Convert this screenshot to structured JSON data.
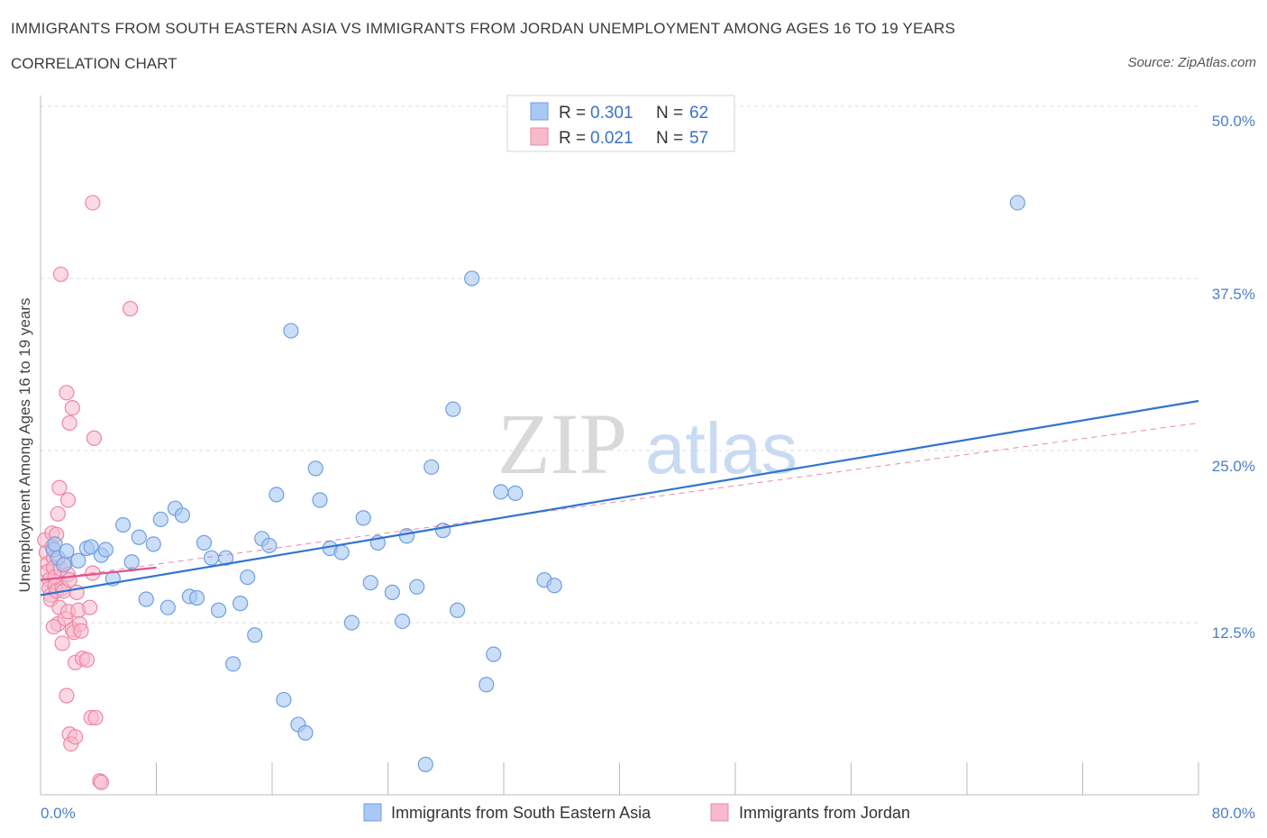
{
  "header": {
    "title": "IMMIGRANTS FROM SOUTH EASTERN ASIA VS IMMIGRANTS FROM JORDAN UNEMPLOYMENT AMONG AGES 16 TO 19 YEARS",
    "subtitle": "CORRELATION CHART",
    "source": "Source: ZipAtlas.com"
  },
  "legend": {
    "r_label": "R =",
    "n_label": "N =",
    "entries": [
      {
        "r": "0.301",
        "n": "62"
      },
      {
        "r": "0.021",
        "n": "57"
      }
    ]
  },
  "watermark": {
    "zip": "ZIP",
    "atlas": "atlas"
  },
  "colors": {
    "blue_fill": "#a9c8f3",
    "blue_stroke": "#6f9fe0",
    "blue_line": "#2f74d0",
    "pink_fill": "#f7b9cc",
    "pink_stroke": "#ee86a6",
    "pink_line": "#e0548a"
  },
  "chart_data": {
    "type": "scatter",
    "title": "IMMIGRANTS FROM SOUTH EASTERN ASIA VS IMMIGRANTS FROM JORDAN UNEMPLOYMENT AMONG AGES 16 TO 19 YEARS",
    "ylabel": "Unemployment Among Ages 16 to 19 years",
    "xlim": [
      0,
      80
    ],
    "ylim": [
      0,
      50
    ],
    "x_tick_labels": [
      "0.0%",
      "80.0%"
    ],
    "y_ticks": [
      12.5,
      25.0,
      37.5,
      50.0
    ],
    "y_tick_labels": [
      "12.5%",
      "25.0%",
      "37.5%",
      "50.0%"
    ],
    "grid": true,
    "series": [
      {
        "name": "Immigrants from South Eastern Asia",
        "r": 0.301,
        "n": 62,
        "trend": {
          "x": [
            0,
            80
          ],
          "y": [
            14.5,
            28.6
          ]
        },
        "points": [
          [
            0.9,
            17.8
          ],
          [
            1.0,
            18.2
          ],
          [
            1.2,
            17.2
          ],
          [
            1.6,
            16.7
          ],
          [
            2.6,
            17.0
          ],
          [
            3.2,
            17.9
          ],
          [
            3.5,
            18.0
          ],
          [
            4.2,
            17.4
          ],
          [
            4.5,
            17.8
          ],
          [
            5.0,
            15.7
          ],
          [
            5.7,
            19.6
          ],
          [
            6.3,
            16.9
          ],
          [
            6.8,
            18.7
          ],
          [
            7.3,
            14.2
          ],
          [
            7.8,
            18.2
          ],
          [
            8.3,
            20.0
          ],
          [
            8.8,
            13.6
          ],
          [
            9.3,
            20.8
          ],
          [
            9.8,
            20.3
          ],
          [
            10.3,
            14.4
          ],
          [
            10.8,
            14.3
          ],
          [
            11.3,
            18.3
          ],
          [
            11.8,
            17.2
          ],
          [
            12.3,
            13.4
          ],
          [
            12.8,
            17.2
          ],
          [
            13.3,
            9.5
          ],
          [
            13.8,
            13.9
          ],
          [
            14.3,
            15.8
          ],
          [
            14.8,
            11.6
          ],
          [
            15.3,
            18.6
          ],
          [
            15.8,
            18.1
          ],
          [
            16.3,
            21.8
          ],
          [
            16.8,
            6.9
          ],
          [
            17.3,
            33.7
          ],
          [
            17.8,
            5.1
          ],
          [
            18.3,
            4.5
          ],
          [
            19.0,
            23.7
          ],
          [
            19.3,
            21.4
          ],
          [
            20.0,
            17.9
          ],
          [
            20.8,
            17.6
          ],
          [
            21.5,
            12.5
          ],
          [
            22.3,
            20.1
          ],
          [
            22.8,
            15.4
          ],
          [
            23.3,
            18.3
          ],
          [
            24.3,
            14.7
          ],
          [
            25.0,
            12.6
          ],
          [
            25.3,
            18.8
          ],
          [
            26.0,
            15.1
          ],
          [
            26.6,
            2.2
          ],
          [
            27.0,
            23.8
          ],
          [
            27.8,
            19.2
          ],
          [
            28.5,
            28.0
          ],
          [
            28.8,
            13.4
          ],
          [
            29.8,
            37.5
          ],
          [
            30.8,
            8.0
          ],
          [
            31.3,
            10.2
          ],
          [
            31.8,
            22.0
          ],
          [
            32.8,
            21.9
          ],
          [
            34.8,
            15.6
          ],
          [
            35.5,
            15.2
          ],
          [
            67.5,
            43.0
          ],
          [
            1.8,
            17.7
          ]
        ]
      },
      {
        "name": "Immigrants from Jordan",
        "r": 0.021,
        "n": 57,
        "trend": {
          "x": [
            0,
            8
          ],
          "y": [
            15.6,
            16.5
          ]
        },
        "trend_extended": {
          "x": [
            0,
            80
          ],
          "y": [
            15.6,
            27.0
          ]
        },
        "points": [
          [
            0.3,
            18.5
          ],
          [
            0.4,
            17.6
          ],
          [
            0.5,
            16.8
          ],
          [
            0.5,
            16.2
          ],
          [
            0.6,
            15.6
          ],
          [
            0.6,
            15.0
          ],
          [
            0.7,
            14.5
          ],
          [
            0.7,
            14.2
          ],
          [
            0.8,
            19.0
          ],
          [
            0.8,
            18.0
          ],
          [
            0.9,
            17.2
          ],
          [
            0.9,
            16.5
          ],
          [
            1.0,
            15.8
          ],
          [
            1.0,
            15.2
          ],
          [
            1.1,
            14.8
          ],
          [
            1.2,
            20.4
          ],
          [
            1.2,
            12.4
          ],
          [
            1.3,
            22.3
          ],
          [
            1.3,
            13.6
          ],
          [
            1.4,
            37.8
          ],
          [
            1.4,
            16.4
          ],
          [
            1.5,
            15.0
          ],
          [
            1.5,
            11.0
          ],
          [
            1.6,
            14.8
          ],
          [
            1.7,
            16.8
          ],
          [
            1.7,
            12.8
          ],
          [
            1.8,
            29.2
          ],
          [
            1.8,
            7.2
          ],
          [
            1.9,
            21.4
          ],
          [
            1.9,
            16.0
          ],
          [
            1.9,
            13.3
          ],
          [
            2.0,
            27.0
          ],
          [
            2.0,
            15.6
          ],
          [
            2.0,
            4.4
          ],
          [
            2.1,
            3.7
          ],
          [
            2.2,
            28.1
          ],
          [
            2.2,
            12.0
          ],
          [
            2.3,
            11.8
          ],
          [
            2.4,
            9.6
          ],
          [
            2.4,
            4.2
          ],
          [
            2.5,
            14.7
          ],
          [
            2.6,
            13.4
          ],
          [
            2.7,
            12.4
          ],
          [
            2.8,
            11.9
          ],
          [
            2.9,
            9.9
          ],
          [
            3.2,
            9.8
          ],
          [
            3.4,
            13.6
          ],
          [
            3.5,
            5.6
          ],
          [
            3.6,
            16.1
          ],
          [
            3.7,
            25.9
          ],
          [
            3.8,
            5.6
          ],
          [
            3.6,
            43.0
          ],
          [
            4.1,
            1.0
          ],
          [
            4.2,
            0.9
          ],
          [
            6.2,
            35.3
          ],
          [
            0.9,
            12.2
          ],
          [
            1.1,
            18.9
          ]
        ]
      }
    ]
  },
  "bottom_legend": {
    "items": [
      "Immigrants from South Eastern Asia",
      "Immigrants from Jordan"
    ]
  }
}
